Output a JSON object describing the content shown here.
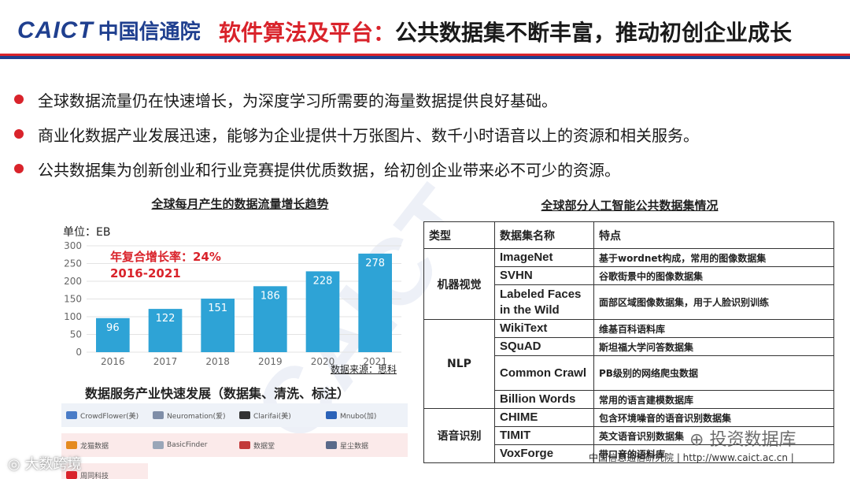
{
  "header": {
    "logo_en": "CAICT",
    "logo_cn": "中国信通院",
    "title_prefix": "软件算法及平台：",
    "title_main": "公共数据集不断丰富，推动初创企业成长"
  },
  "bullets": [
    "全球数据流量仍在快速增长，为深度学习所需要的海量数据提供良好基础。",
    "商业化数据产业发展迅速，能够为企业提供十万张图片、数千小时语音以上的资源和相关服务。",
    "公共数据集为创新创业和行业竞赛提供优质数据，给初创企业带来必不可少的资源。"
  ],
  "chart_data": {
    "type": "bar",
    "title": "全球每月产生的数据流量增长趋势",
    "unit_label": "单位：EB",
    "annotation": [
      "年复合增长率：24%",
      "2016-2021"
    ],
    "categories": [
      "2016",
      "2017",
      "2018",
      "2019",
      "2020",
      "2021"
    ],
    "values": [
      96,
      122,
      151,
      186,
      228,
      278
    ],
    "y_ticks": [
      "0",
      "50",
      "100",
      "150",
      "200",
      "250",
      "300"
    ],
    "ylim": [
      0,
      300
    ],
    "bar_color": "#2ea3d6",
    "grid": true,
    "source": "数据来源：思科"
  },
  "services": {
    "title": "数据服务产业快速发展（数据集、清洗、标注）",
    "logos": [
      "CrowdFlower(美)",
      "Neuromation(爱)",
      "Clarifai(美)",
      "Mnubo(加)",
      "龙猫数据",
      "BasicFinder",
      "数据堂",
      "星尘数据",
      "周同科技"
    ]
  },
  "table": {
    "title": "全球部分人工智能公共数据集情况",
    "headers": [
      "类型",
      "数据集名称",
      "特点"
    ],
    "groups": [
      {
        "category": "机器视觉",
        "rows": [
          {
            "name": "ImageNet",
            "feature": "基于wordnet构成，常用的图像数据集"
          },
          {
            "name": "SVHN",
            "feature": "谷歌街景中的图像数据集"
          },
          {
            "name": "Labeled Faces in the Wild",
            "feature": "面部区域图像数据集，用于人脸识别训练"
          }
        ]
      },
      {
        "category": "NLP",
        "rows": [
          {
            "name": "WikiText",
            "feature": "维基百科语料库"
          },
          {
            "name": "SQuAD",
            "feature": "斯坦福大学问答数据集"
          },
          {
            "name": "Common Crawl",
            "feature": "PB级别的网络爬虫数据"
          },
          {
            "name": "Billion Words",
            "feature": "常用的语言建模数据库"
          }
        ]
      },
      {
        "category": "语音识别",
        "rows": [
          {
            "name": "CHIME",
            "feature": "包含环境噪音的语音识别数据集"
          },
          {
            "name": "TIMIT",
            "feature": "英文语音识别数据集"
          },
          {
            "name": "VoxForge",
            "feature": "带口音的语料库"
          }
        ]
      }
    ]
  },
  "footer": {
    "text": "中国信息通信研究院  |  http://www.caict.ac.cn  |",
    "wechat": "投资数据库",
    "brand": "大数跨境"
  },
  "colors": {
    "accent_red": "#d9232b",
    "brand_blue": "#1f3f8f"
  }
}
